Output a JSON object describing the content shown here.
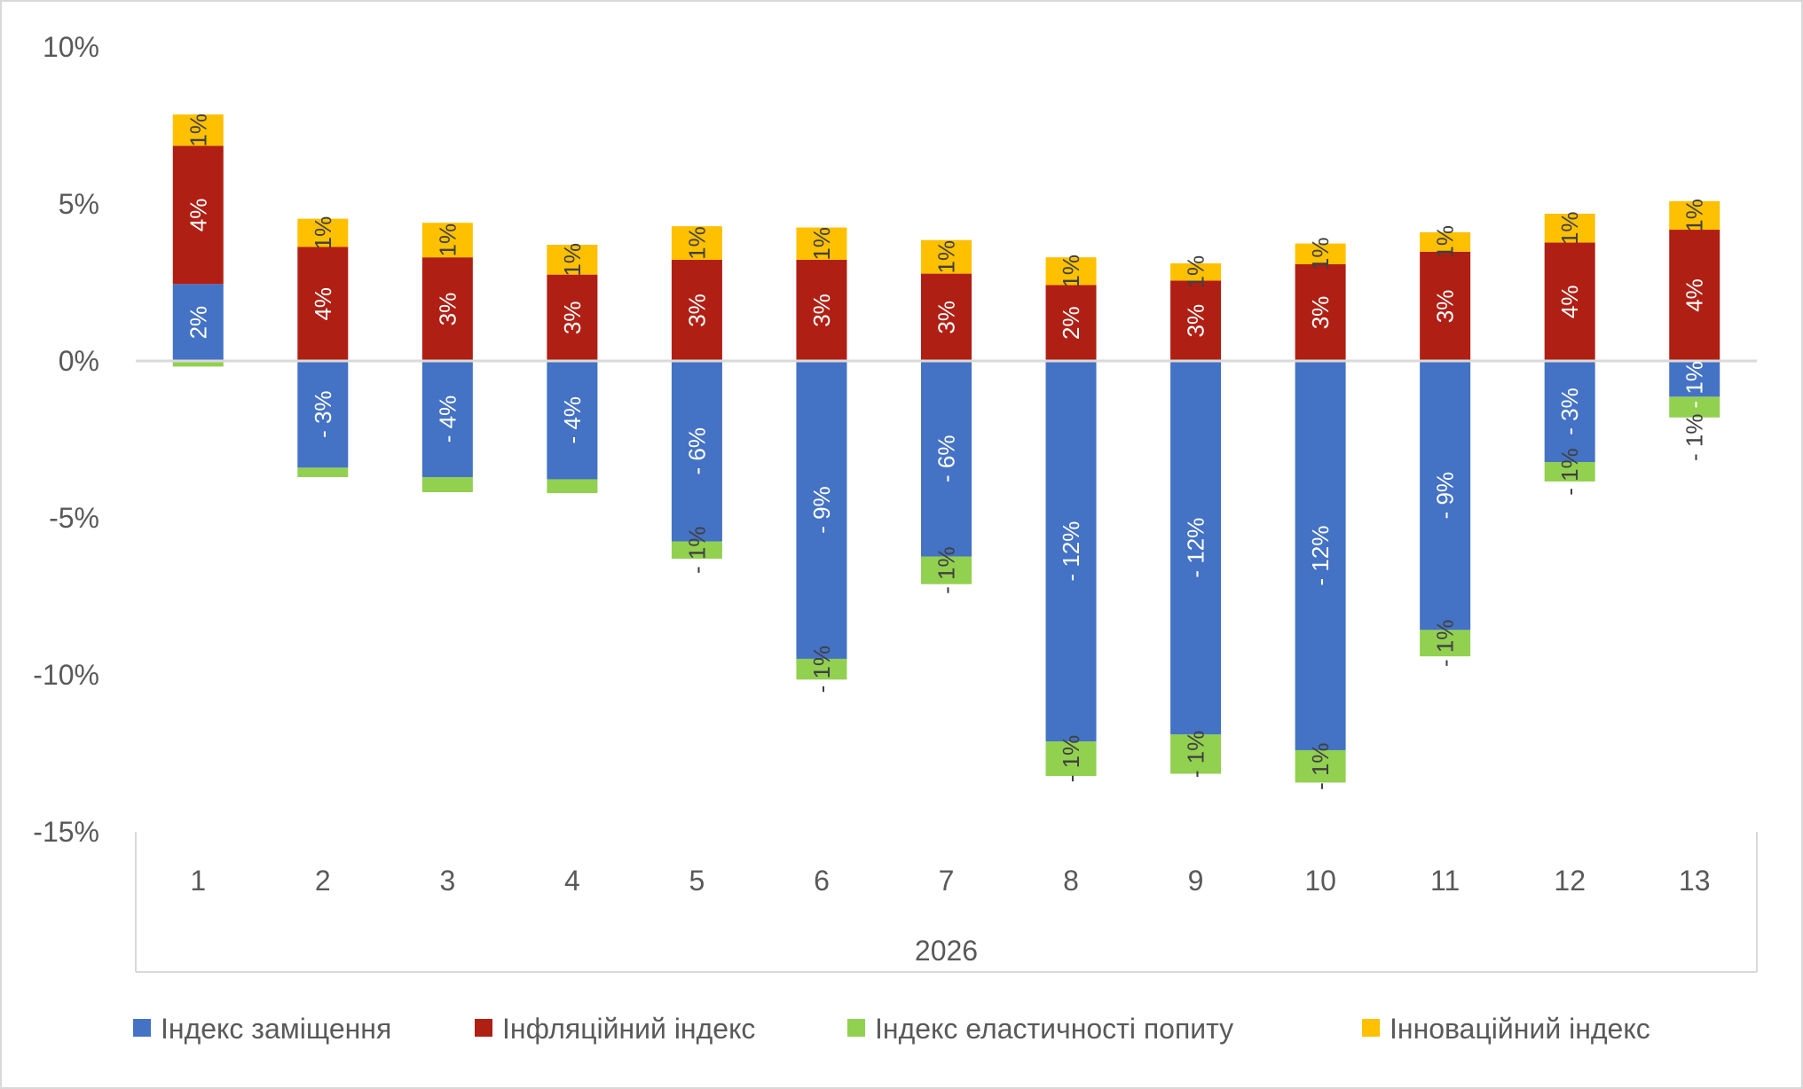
{
  "chart_data": {
    "type": "bar",
    "stacked": true,
    "title": "",
    "xlabel": "",
    "ylabel": "",
    "ylim": [
      -15,
      10
    ],
    "yticks": [
      "10%",
      "5%",
      "0%",
      "-5%",
      "-10%",
      "-15%"
    ],
    "ytick_values": [
      10,
      5,
      0,
      -5,
      -10,
      -15
    ],
    "grid": false,
    "legend_position": "bottom",
    "group_label": "2026",
    "categories": [
      "1",
      "2",
      "3",
      "4",
      "5",
      "6",
      "7",
      "8",
      "9",
      "10",
      "11",
      "12",
      "13"
    ],
    "series": [
      {
        "name": "Індекс заміщення",
        "color": "#4472C4",
        "label_color": "#FFFFFF",
        "values": [
          2.45,
          -3.4,
          -3.7,
          -3.77,
          -5.75,
          -9.49,
          -6.23,
          -12.12,
          -11.9,
          -12.4,
          -8.57,
          -3.22,
          -1.14
        ],
        "labels": [
          "2%",
          "- 3%",
          "- 4%",
          "- 4%",
          "- 6%",
          "- 9%",
          "- 6%",
          "- 12%",
          "- 12%",
          "- 12%",
          "- 9%",
          "- 3%",
          "- 1%"
        ]
      },
      {
        "name": "Інфляційний індекс",
        "color": "#B01F14",
        "label_color": "#FFFFFF",
        "values": [
          4.4,
          3.63,
          3.3,
          2.75,
          3.22,
          3.22,
          2.78,
          2.42,
          2.56,
          3.08,
          3.48,
          3.77,
          4.18
        ],
        "labels": [
          "4%",
          "4%",
          "3%",
          "3%",
          "3%",
          "3%",
          "3%",
          "2%",
          "3%",
          "3%",
          "3%",
          "4%",
          "4%"
        ]
      },
      {
        "name": "Індекс еластичності попиту",
        "color": "#92D050",
        "label_color": "#404040",
        "values": [
          -0.18,
          -0.3,
          -0.48,
          -0.44,
          -0.55,
          -0.66,
          -0.88,
          -1.1,
          -1.25,
          -1.03,
          -0.84,
          -0.62,
          -0.66
        ],
        "labels": [
          null,
          null,
          null,
          null,
          "- 1%",
          "- 1%",
          "- 1%",
          "- 1%",
          "- 1%",
          "- 1%",
          "- 1%",
          "- 1%",
          "- 1%"
        ]
      },
      {
        "name": "Інноваційний індекс",
        "color": "#FFC000",
        "label_color": "#404040",
        "values": [
          1.0,
          0.9,
          1.1,
          0.95,
          1.07,
          1.03,
          1.07,
          0.88,
          0.55,
          0.66,
          0.62,
          0.92,
          0.91
        ],
        "labels": [
          "1%",
          "1%",
          "1%",
          "1%",
          "1%",
          "1%",
          "1%",
          "1%",
          "1%",
          "1%",
          "1%",
          "1%",
          "1%"
        ]
      }
    ]
  }
}
